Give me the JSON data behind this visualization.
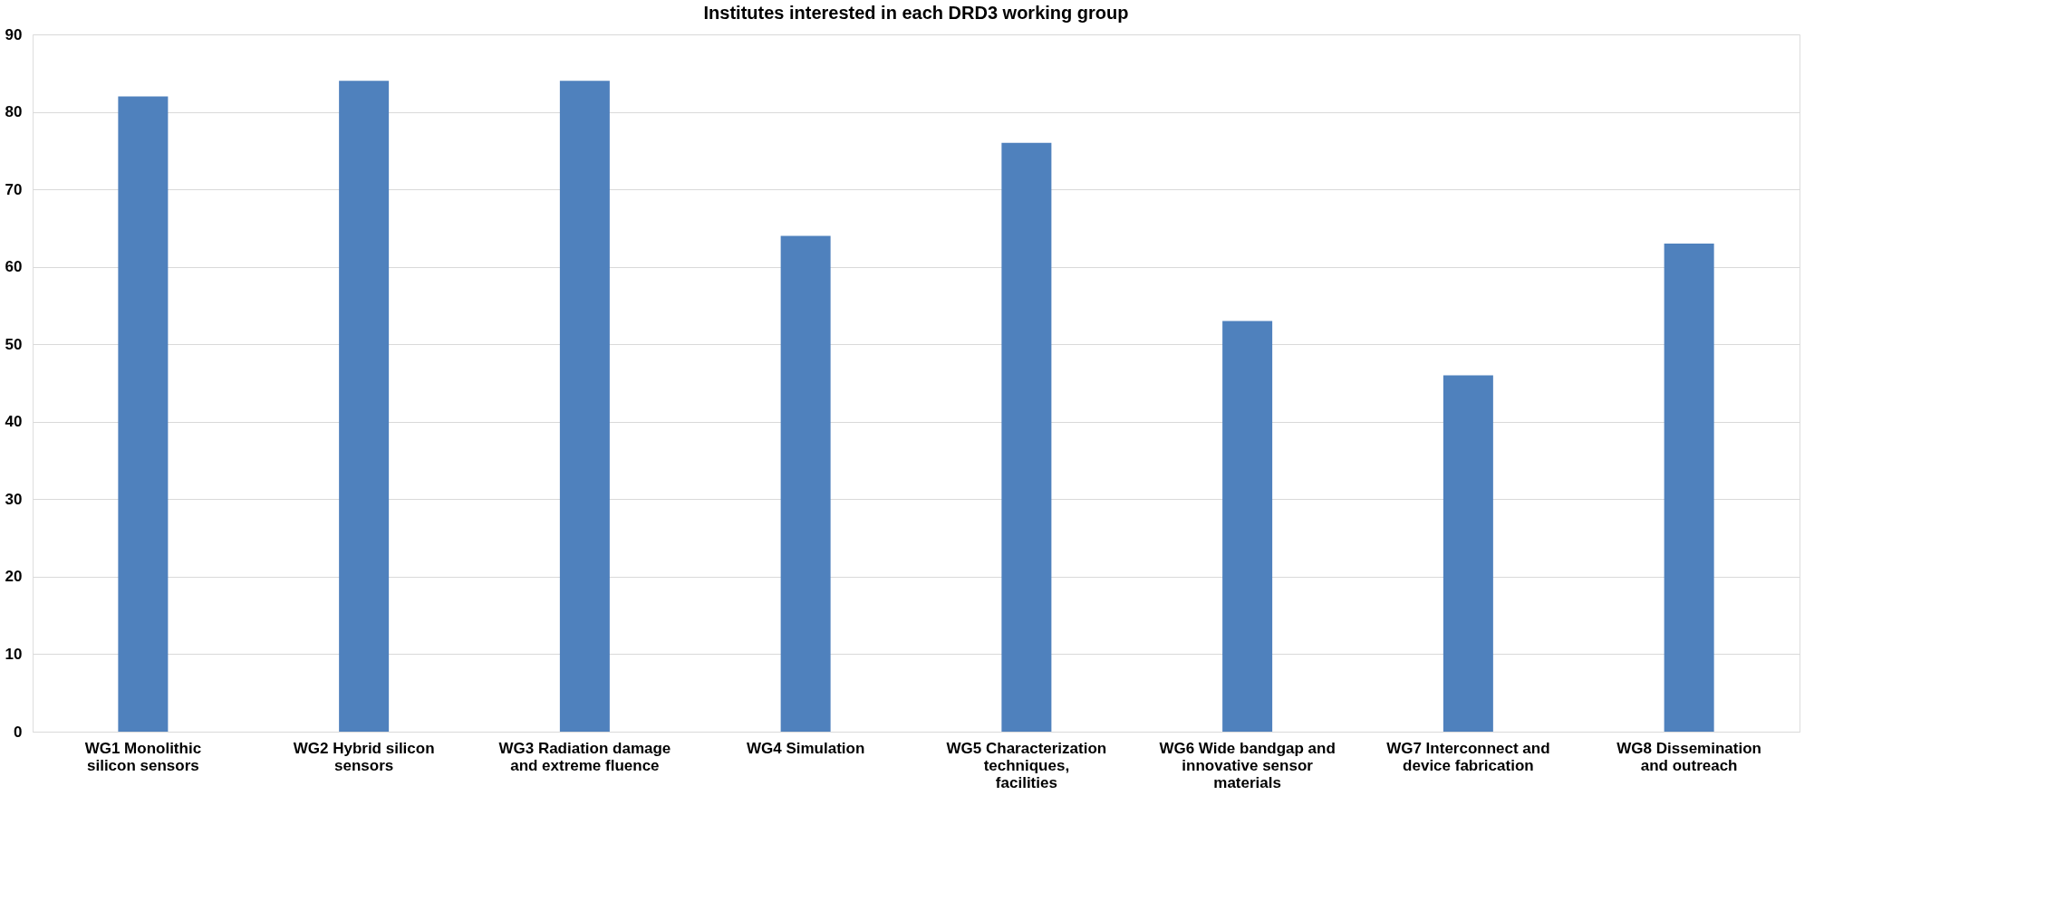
{
  "chart_data": {
    "type": "bar",
    "title": "Institutes interested in each DRD3 working group",
    "categories": [
      "WG1 Monolithic silicon sensors",
      "WG2 Hybrid silicon sensors",
      "WG3 Radiation damage and extreme fluence",
      "WG4 Simulation",
      "WG5 Characterization techniques, facilities",
      "WG6 Wide bandgap and innovative sensor materials",
      "WG7 Interconnect and device fabrication",
      "WG8 Dissemination and outreach"
    ],
    "values": [
      82,
      84,
      84,
      64,
      76,
      53,
      46,
      63
    ],
    "color": "#4f81bd",
    "ylim": [
      0,
      90
    ],
    "yticks": [
      0,
      10,
      20,
      30,
      40,
      50,
      60,
      70,
      80,
      90
    ],
    "grid": "y"
  }
}
